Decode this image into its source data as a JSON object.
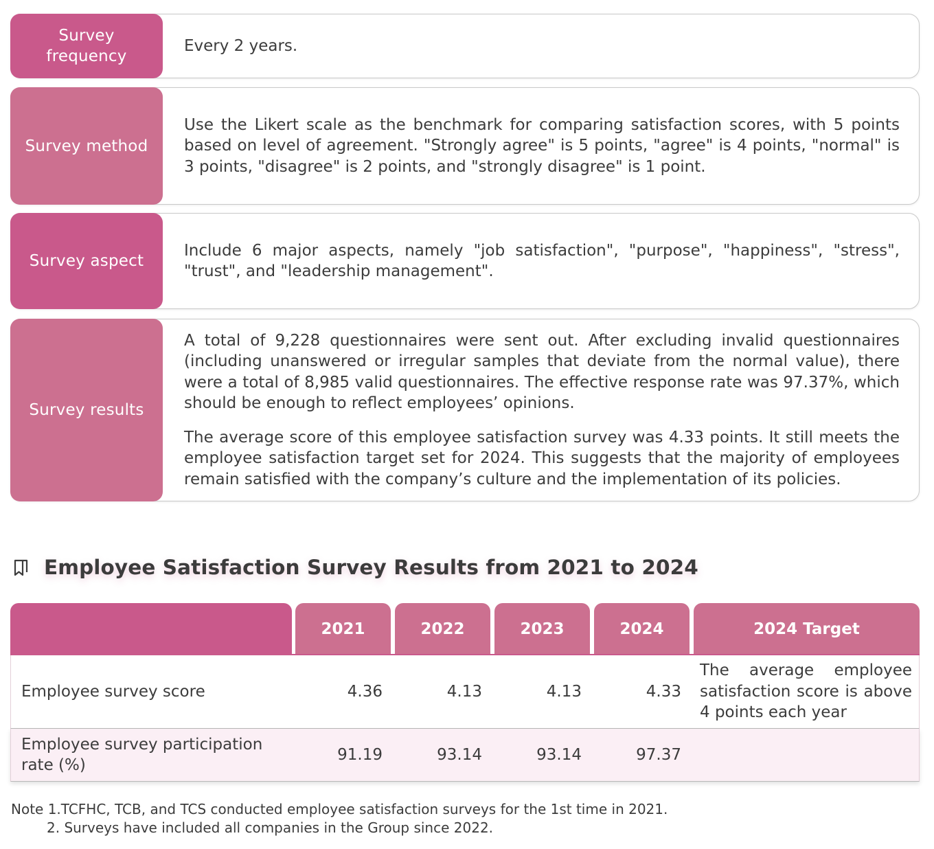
{
  "info_rows": [
    {
      "label": "Survey frequency",
      "paragraphs": [
        "Every 2 years."
      ]
    },
    {
      "label": "Survey method",
      "paragraphs": [
        "Use the Likert scale as the benchmark for comparing satisfaction scores, with 5 points based on level of agreement. \"Strongly agree\" is 5 points, \"agree\" is 4 points, \"normal\" is 3 points, \"disagree\" is 2 points, and \"strongly disagree\" is 1 point."
      ]
    },
    {
      "label": "Survey aspect",
      "paragraphs": [
        "Include 6 major aspects, namely \"job satisfaction\", \"purpose\", \"happiness\", \"stress\", \"trust\", and \"leadership management\"."
      ]
    },
    {
      "label": "Survey results",
      "paragraphs": [
        "A total of 9,228 questionnaires were sent out. After excluding invalid questionnaires (including unanswered or irregular samples that deviate from the normal value), there were a total of 8,985 valid questionnaires. The effective response rate was 97.37%, which should be enough to reflect employees’ opinions.",
        "The average score of this employee satisfaction survey was 4.33 points. It still meets the employee satisfaction target set for 2024. This suggests that the majority of employees remain satisfied with the company’s culture and the implementation of its policies."
      ]
    }
  ],
  "section": {
    "title": "Employee Satisfaction Survey Results from 2021 to 2024",
    "icon": "bookmark-icon"
  },
  "table": {
    "headers": [
      "",
      "2021",
      "2022",
      "2023",
      "2024",
      "2024 Target"
    ],
    "rows": [
      {
        "label": "Employee survey score",
        "values": [
          "4.36",
          "4.13",
          "4.13",
          "4.33"
        ],
        "target": "The average employee satisfaction score is above 4 points each year"
      },
      {
        "label": "Employee survey participation rate (%)",
        "values": [
          "91.19",
          "93.14",
          "93.14",
          "97.37"
        ],
        "target": ""
      }
    ]
  },
  "notes": [
    "Note 1.TCFHC, TCB, and TCS conducted employee satisfaction surveys for the 1st time in 2021.",
    "2. Surveys have included all companies in the Group since 2022."
  ],
  "colors": {
    "label_dark": "#c9598b",
    "label_light": "#cc7090",
    "row_tint": "#fbeff5"
  }
}
